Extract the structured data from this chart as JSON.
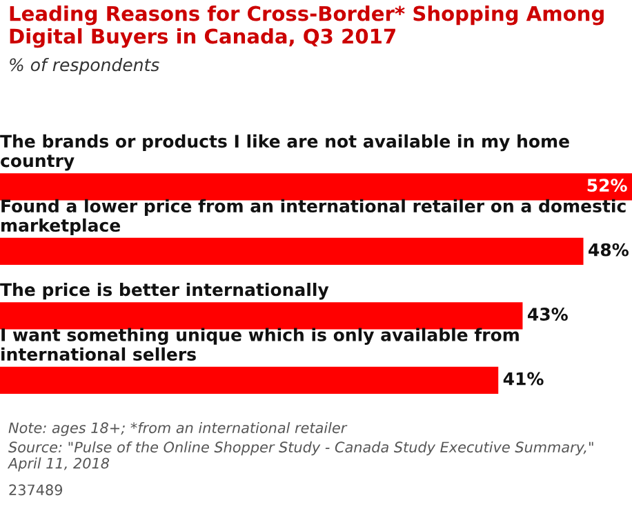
{
  "chart_data": {
    "type": "bar",
    "orientation": "horizontal",
    "title": "Leading Reasons for Cross-Border* Shopping Among Digital Buyers in Canada, Q3 2017",
    "subtitle": "% of respondents",
    "categories": [
      "The brands or products I like are not available in my home country",
      "Found a lower price from an international retailer on a domestic marketplace",
      "The price is better internationally",
      "I want something unique which is only available from international sellers"
    ],
    "values": [
      52,
      48,
      43,
      41
    ],
    "value_labels": [
      "52%",
      "48%",
      "43%",
      "41%"
    ],
    "color": "#ff0000",
    "xlim": [
      0,
      52
    ],
    "tick_labels": false,
    "annotations": [
      "Note: ages 18+; *from an international retailer",
      "Source: \"Pulse of the Online Shopper Study - Canada Study Executive Summary,\" April 11, 2018",
      "237489"
    ]
  }
}
